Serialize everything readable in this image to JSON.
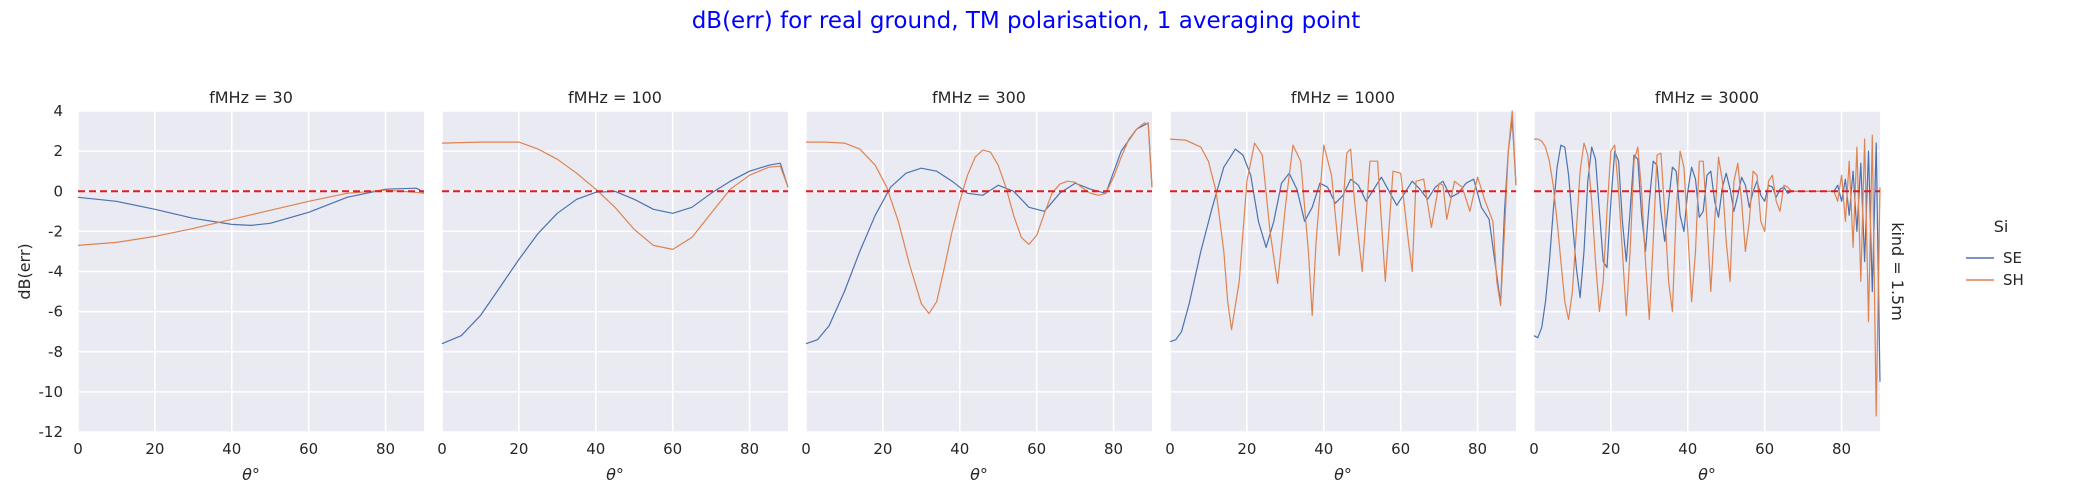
{
  "chart_data": {
    "type": "line",
    "title": "dB(err) for real ground, TM polarisation, 1 averaging point",
    "title_color": "#0000ff",
    "row_label": "kind = 1.5m",
    "xlabel": "θ°",
    "ylabel": "dB(err)",
    "xlim": [
      0,
      90
    ],
    "ylim": [
      -12,
      4
    ],
    "xticks": [
      0,
      20,
      40,
      60,
      80
    ],
    "yticks": [
      4,
      2,
      0,
      -2,
      -4,
      -6,
      -8,
      -10,
      -12
    ],
    "reference_line": {
      "y": 0,
      "color": "#e41a1c",
      "style": "dashed"
    },
    "legend": {
      "title": "Si",
      "position": "right",
      "entries": [
        {
          "name": "SE",
          "color": "#4c72b0"
        },
        {
          "name": "SH",
          "color": "#dd8452"
        }
      ]
    },
    "panels": [
      {
        "title": "fMHz = 30",
        "series": [
          {
            "name": "SE",
            "color": "#4c72b0",
            "x": [
              0,
              10,
              20,
              30,
              40,
              45,
              50,
              60,
              70,
              80,
              88,
              90
            ],
            "y": [
              -0.3,
              -0.5,
              -0.9,
              -1.35,
              -1.65,
              -1.7,
              -1.6,
              -1.05,
              -0.3,
              0.1,
              0.15,
              -0.05
            ]
          },
          {
            "name": "SH",
            "color": "#dd8452",
            "x": [
              0,
              10,
              20,
              30,
              40,
              50,
              60,
              70,
              80,
              88,
              90
            ],
            "y": [
              -2.7,
              -2.55,
              -2.25,
              -1.85,
              -1.4,
              -0.95,
              -0.5,
              -0.1,
              0.05,
              -0.05,
              -0.1
            ]
          }
        ]
      },
      {
        "title": "fMHz = 100",
        "series": [
          {
            "name": "SE",
            "color": "#4c72b0",
            "x": [
              0,
              5,
              10,
              15,
              20,
              25,
              30,
              35,
              40,
              45,
              50,
              55,
              60,
              65,
              70,
              75,
              80,
              85,
              88,
              90
            ],
            "y": [
              -7.6,
              -7.2,
              -6.2,
              -4.8,
              -3.4,
              -2.1,
              -1.1,
              -0.4,
              -0.05,
              0.0,
              -0.4,
              -0.9,
              -1.1,
              -0.8,
              -0.1,
              0.5,
              1.0,
              1.3,
              1.4,
              0.2
            ]
          },
          {
            "name": "SH",
            "color": "#dd8452",
            "x": [
              0,
              10,
              20,
              25,
              30,
              35,
              40,
              45,
              50,
              55,
              60,
              65,
              70,
              75,
              80,
              85,
              88,
              90
            ],
            "y": [
              2.4,
              2.45,
              2.45,
              2.1,
              1.6,
              0.9,
              0.1,
              -0.8,
              -1.9,
              -2.7,
              -2.9,
              -2.3,
              -1.1,
              0.1,
              0.8,
              1.2,
              1.25,
              0.2
            ]
          }
        ]
      },
      {
        "title": "fMHz = 300",
        "series": [
          {
            "name": "SE",
            "color": "#4c72b0",
            "x": [
              0,
              3,
              6,
              10,
              14,
              18,
              22,
              26,
              30,
              34,
              38,
              42,
              46,
              50,
              54,
              58,
              62,
              66,
              70,
              74,
              78,
              82,
              86,
              89,
              90
            ],
            "y": [
              -7.6,
              -7.4,
              -6.7,
              -5.0,
              -3.0,
              -1.2,
              0.2,
              0.9,
              1.15,
              1.0,
              0.5,
              -0.1,
              -0.2,
              0.3,
              0.0,
              -0.8,
              -1.0,
              -0.1,
              0.4,
              0.1,
              -0.1,
              2.0,
              3.1,
              3.4,
              0.2
            ]
          },
          {
            "name": "SH",
            "color": "#dd8452",
            "x": [
              0,
              5,
              10,
              14,
              18,
              21,
              24,
              27,
              30,
              32,
              34,
              36,
              38,
              40,
              42,
              44,
              46,
              48,
              50,
              52,
              54,
              56,
              58,
              60,
              62,
              64,
              66,
              68,
              70,
              72,
              74,
              76,
              78,
              80,
              82,
              84,
              86,
              88,
              89,
              90
            ],
            "y": [
              2.45,
              2.45,
              2.4,
              2.1,
              1.3,
              0.2,
              -1.5,
              -3.7,
              -5.6,
              -6.1,
              -5.5,
              -3.8,
              -2.0,
              -0.5,
              0.8,
              1.7,
              2.05,
              1.95,
              1.3,
              0.2,
              -1.2,
              -2.3,
              -2.65,
              -2.2,
              -1.1,
              -0.1,
              0.35,
              0.5,
              0.45,
              0.15,
              -0.1,
              -0.2,
              -0.1,
              0.7,
              1.7,
              2.6,
              3.1,
              3.4,
              3.35,
              0.2
            ]
          }
        ]
      },
      {
        "title": "fMHz = 1000",
        "series": [
          {
            "name": "SE",
            "color": "#4c72b0",
            "x": [
              0,
              1.5,
              3,
              5,
              8,
              11,
              14,
              17,
              19,
              21,
              23,
              25,
              27,
              29,
              31,
              33,
              35,
              37,
              39,
              41,
              43,
              45,
              47,
              49,
              51,
              53,
              55,
              57,
              59,
              61,
              63,
              65,
              67,
              69,
              71,
              73,
              75,
              77,
              79,
              81,
              83,
              85,
              86,
              87,
              88,
              89,
              90
            ],
            "y": [
              -7.5,
              -7.4,
              -7.0,
              -5.6,
              -3.0,
              -0.8,
              1.2,
              2.1,
              1.8,
              0.8,
              -1.5,
              -2.8,
              -1.5,
              0.4,
              0.9,
              0.1,
              -1.5,
              -0.8,
              0.4,
              0.2,
              -0.6,
              -0.2,
              0.6,
              0.3,
              -0.5,
              0.1,
              0.7,
              0.0,
              -0.7,
              -0.1,
              0.5,
              0.1,
              -0.4,
              0.2,
              0.5,
              -0.3,
              -0.1,
              0.4,
              0.6,
              -0.8,
              -1.4,
              -4.2,
              -5.6,
              -1.0,
              2.0,
              3.6,
              0.3
            ]
          },
          {
            "name": "SH",
            "color": "#dd8452",
            "x": [
              0,
              4,
              8,
              10,
              12,
              14,
              15,
              16,
              18,
              20,
              22,
              24,
              26,
              28,
              30,
              32,
              34,
              36,
              37,
              38,
              40,
              42,
              44,
              46,
              47,
              48,
              50,
              52,
              54,
              55,
              56,
              58,
              60,
              62,
              63,
              64,
              66,
              68,
              70,
              71,
              72,
              74,
              76,
              78,
              80,
              82,
              84,
              85,
              86,
              87,
              88,
              89,
              90
            ],
            "y": [
              2.6,
              2.55,
              2.2,
              1.5,
              0.0,
              -3.0,
              -5.5,
              -6.9,
              -4.5,
              0.5,
              2.4,
              1.8,
              -2.0,
              -4.6,
              -0.8,
              2.3,
              1.5,
              -3.0,
              -6.2,
              -2.5,
              2.3,
              0.8,
              -3.2,
              1.9,
              2.1,
              -0.5,
              -4.0,
              1.5,
              1.5,
              -1.5,
              -4.5,
              1.0,
              0.9,
              -2.5,
              -4.0,
              0.5,
              0.6,
              -1.8,
              0.4,
              0.3,
              -1.4,
              0.5,
              0.2,
              -1.0,
              0.7,
              -0.5,
              -1.5,
              -4.5,
              -5.7,
              -2.0,
              2.0,
              4.0,
              0.3
            ]
          }
        ]
      },
      {
        "title": "fMHz = 3000",
        "series": [
          {
            "name": "SE",
            "color": "#4c72b0",
            "x": [
              0,
              1,
              2,
              3,
              4,
              5,
              6,
              7,
              8,
              9,
              10,
              11,
              12,
              13,
              14,
              15,
              16,
              17,
              18,
              19,
              20,
              21,
              22,
              23,
              24,
              25,
              26,
              27,
              28,
              29,
              30,
              31,
              32,
              33,
              34,
              35,
              36,
              37,
              38,
              39,
              40,
              41,
              42,
              43,
              44,
              45,
              46,
              47,
              48,
              49,
              50,
              51,
              52,
              53,
              54,
              55,
              56,
              57,
              58,
              59,
              60,
              61,
              62,
              63,
              64,
              65,
              66,
              67,
              78,
              79,
              80,
              81,
              82,
              83,
              84,
              85,
              86,
              87,
              88,
              89,
              90
            ],
            "y": [
              -7.2,
              -7.3,
              -6.8,
              -5.5,
              -3.5,
              -1.0,
              1.2,
              2.3,
              2.2,
              0.8,
              -1.5,
              -3.8,
              -5.3,
              -3.0,
              0.5,
              2.2,
              1.6,
              -1.0,
              -3.5,
              -3.8,
              -0.5,
              2.0,
              1.5,
              -1.5,
              -3.5,
              -1.0,
              1.8,
              1.6,
              -1.2,
              -3.0,
              -0.5,
              1.5,
              1.3,
              -1.0,
              -2.5,
              -0.5,
              1.2,
              1.0,
              -1.2,
              -2.0,
              0.0,
              1.2,
              0.6,
              -1.3,
              -1.0,
              0.8,
              1.0,
              -0.5,
              -1.3,
              0.2,
              0.9,
              0.1,
              -1.0,
              -0.2,
              0.7,
              0.3,
              -0.8,
              0.0,
              0.5,
              -0.2,
              -0.5,
              0.3,
              0.2,
              -0.3,
              0.1,
              0.2,
              -0.1,
              0.0,
              0.0,
              0.3,
              -0.5,
              0.6,
              -1.2,
              1.0,
              -2.0,
              1.4,
              -3.5,
              2.0,
              -5.0,
              2.4,
              -9.5
            ]
          },
          {
            "name": "SH",
            "color": "#dd8452",
            "x": [
              0,
              1,
              2,
              3,
              4,
              5,
              6,
              7,
              8,
              9,
              10,
              11,
              12,
              13,
              14,
              15,
              16,
              17,
              18,
              19,
              20,
              21,
              22,
              23,
              24,
              25,
              26,
              27,
              28,
              29,
              30,
              31,
              32,
              33,
              34,
              35,
              36,
              37,
              38,
              39,
              40,
              41,
              42,
              43,
              44,
              45,
              46,
              47,
              48,
              49,
              50,
              51,
              52,
              53,
              54,
              55,
              56,
              57,
              58,
              59,
              60,
              61,
              62,
              63,
              64,
              65,
              66,
              67,
              78,
              79,
              80,
              81,
              82,
              83,
              84,
              85,
              86,
              87,
              88,
              89,
              90
            ],
            "y": [
              2.6,
              2.6,
              2.5,
              2.2,
              1.5,
              0.3,
              -1.5,
              -3.5,
              -5.5,
              -6.4,
              -5.0,
              -2.0,
              1.0,
              2.4,
              1.8,
              -0.5,
              -3.5,
              -6.0,
              -4.5,
              -1.0,
              2.0,
              2.3,
              0.0,
              -3.0,
              -6.2,
              -3.0,
              1.5,
              2.2,
              0.0,
              -3.5,
              -6.4,
              -2.5,
              1.8,
              1.9,
              -1.0,
              -4.5,
              -6.0,
              -1.0,
              2.0,
              1.2,
              -2.0,
              -5.5,
              -3.0,
              1.5,
              1.5,
              -1.5,
              -5.0,
              -1.5,
              1.7,
              0.5,
              -2.5,
              -4.5,
              0.5,
              1.4,
              -0.5,
              -3.0,
              -1.5,
              1.0,
              0.8,
              -1.5,
              -2.0,
              0.5,
              0.8,
              -0.5,
              -1.0,
              0.3,
              0.2,
              0.0,
              0.0,
              -0.5,
              0.8,
              -1.5,
              1.5,
              -2.8,
              2.2,
              -4.5,
              2.6,
              -6.5,
              2.8,
              -11.2,
              0.2
            ]
          }
        ]
      }
    ]
  }
}
